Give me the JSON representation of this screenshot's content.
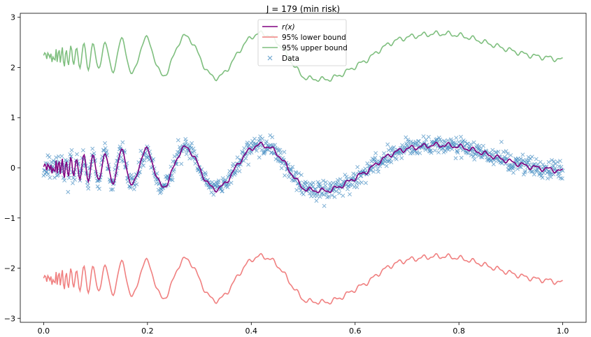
{
  "chart_data": {
    "type": "line",
    "title": "J = 179 (min risk)",
    "xlabel": "",
    "ylabel": "",
    "xlim": [
      -0.045,
      1.045
    ],
    "ylim": [
      -3.08,
      3.08
    ],
    "xticks": [
      0.0,
      0.2,
      0.4,
      0.6,
      0.8,
      1.0
    ],
    "xtick_labels": [
      "0.0",
      "0.2",
      "0.4",
      "0.6",
      "0.8",
      "1.0"
    ],
    "yticks": [
      -3,
      -2,
      -1,
      0,
      1,
      2,
      3
    ],
    "ytick_labels": [
      "−3",
      "−2",
      "−1",
      "0",
      "1",
      "2",
      "3"
    ],
    "grid": false,
    "legend_position": "top-center",
    "band_half_width": 2.22,
    "noise_sd": 0.1,
    "n_points": 1000,
    "series": [
      {
        "name": "r(x)",
        "label_math": true,
        "kind": "line",
        "color": "#800080",
        "role": "estimate"
      },
      {
        "name": "95% lower bound",
        "kind": "line",
        "color": "#f08080",
        "role": "lower"
      },
      {
        "name": "95% upper bound",
        "kind": "line",
        "color": "#7fbf7f",
        "role": "upper"
      },
      {
        "name": "Data",
        "kind": "scatter",
        "marker": "x",
        "color": "#4a90c4",
        "role": "data"
      }
    ],
    "anchor_x": [
      0.0,
      0.025,
      0.05,
      0.075,
      0.1,
      0.125,
      0.15,
      0.175,
      0.2,
      0.225,
      0.25,
      0.275,
      0.3,
      0.325,
      0.35,
      0.375,
      0.4,
      0.425,
      0.45,
      0.475,
      0.5,
      0.525,
      0.55,
      0.575,
      0.6,
      0.625,
      0.65,
      0.675,
      0.7,
      0.725,
      0.75,
      0.775,
      0.8,
      0.825,
      0.85,
      0.875,
      0.9,
      0.925,
      0.95,
      0.975,
      1.0
    ],
    "anchor_r": [
      0.0,
      0.05,
      0.02,
      -0.1,
      0.05,
      -0.2,
      0.25,
      -0.3,
      0.35,
      -0.4,
      0.0,
      0.4,
      0.1,
      -0.4,
      -0.3,
      0.1,
      0.45,
      0.5,
      0.3,
      -0.1,
      -0.4,
      -0.45,
      -0.45,
      -0.35,
      -0.2,
      -0.05,
      0.15,
      0.3,
      0.38,
      0.42,
      0.45,
      0.45,
      0.42,
      0.36,
      0.28,
      0.2,
      0.12,
      0.05,
      0.0,
      -0.03,
      -0.07
    ]
  }
}
